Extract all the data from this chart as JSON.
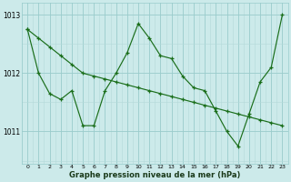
{
  "line1": {
    "x": [
      0,
      1,
      2,
      3,
      4,
      5,
      6,
      7,
      8,
      9,
      10,
      11,
      12,
      13,
      14,
      15,
      16,
      17,
      18,
      19,
      20,
      21,
      22,
      23
    ],
    "y": [
      1012.75,
      1012.6,
      1012.45,
      1012.3,
      1012.15,
      1012.0,
      1011.95,
      1011.9,
      1011.85,
      1011.8,
      1011.75,
      1011.7,
      1011.65,
      1011.6,
      1011.55,
      1011.5,
      1011.45,
      1011.4,
      1011.35,
      1011.3,
      1011.25,
      1011.2,
      1011.15,
      1011.1
    ]
  },
  "line2": {
    "x": [
      0,
      1,
      2,
      3,
      4,
      5,
      6,
      7,
      8,
      9,
      10,
      11,
      12,
      13,
      14,
      15,
      16,
      17,
      18,
      19,
      20,
      21,
      22,
      23
    ],
    "y": [
      1012.75,
      1012.0,
      1011.65,
      1011.55,
      1011.7,
      1011.1,
      1011.1,
      1011.7,
      1012.0,
      1012.35,
      1012.85,
      1012.6,
      1012.3,
      1012.25,
      1011.95,
      1011.75,
      1011.7,
      1011.35,
      1011.0,
      1010.75,
      1011.3,
      1011.85,
      1012.1,
      1013.0
    ]
  },
  "background_color": "#cceaea",
  "grid_major_color": "#99cccc",
  "grid_minor_color": "#b3d9d9",
  "line_color": "#1a6e1a",
  "xlabel": "Graphe pression niveau de la mer (hPa)",
  "yticks": [
    1011,
    1012,
    1013
  ],
  "xticks": [
    0,
    1,
    2,
    3,
    4,
    5,
    6,
    7,
    8,
    9,
    10,
    11,
    12,
    13,
    14,
    15,
    16,
    17,
    18,
    19,
    20,
    21,
    22,
    23
  ],
  "xlim": [
    -0.5,
    23.5
  ],
  "ylim": [
    1010.45,
    1013.2
  ],
  "figsize": [
    3.2,
    2.0
  ],
  "dpi": 100
}
